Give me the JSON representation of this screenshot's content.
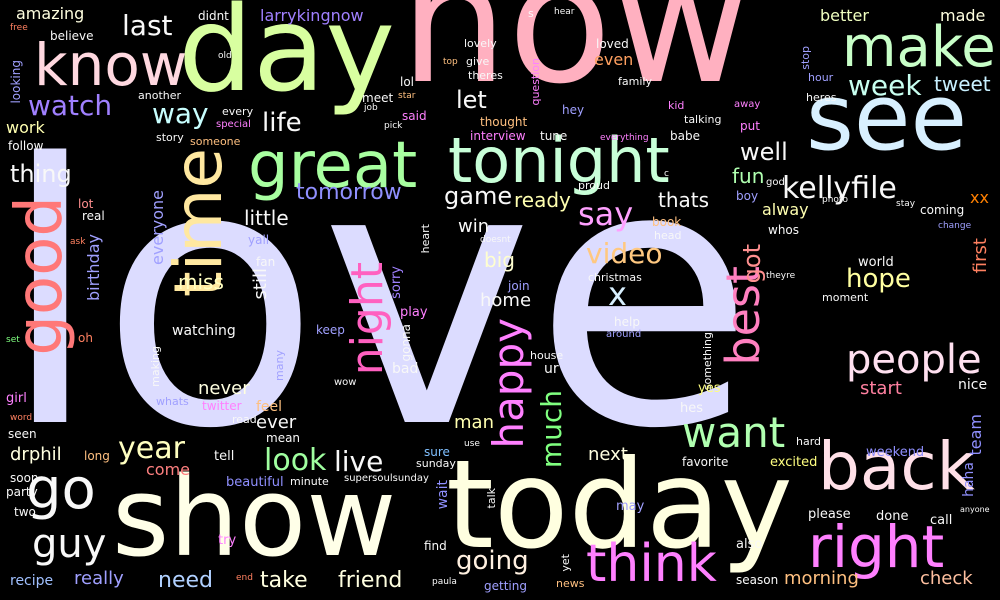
{
  "words": [
    {
      "text": "love",
      "color": "#dcdcff"
    },
    {
      "text": "now",
      "color": "#ffb0c0"
    },
    {
      "text": "day",
      "color": "#d8ffa0"
    },
    {
      "text": "show",
      "color": "#ffffe8"
    },
    {
      "text": "today",
      "color": "#ffffe0"
    },
    {
      "text": "see",
      "color": "#d8f0ff"
    },
    {
      "text": "tonight",
      "color": "#c8ffd8"
    },
    {
      "text": "great",
      "color": "#a8ffa0"
    },
    {
      "text": "time",
      "color": "#ffe8a0"
    },
    {
      "text": "good",
      "color": "#ff7878"
    },
    {
      "text": "make",
      "color": "#c8ffc8"
    },
    {
      "text": "know",
      "color": "#ffd8e0"
    },
    {
      "text": "back",
      "color": "#ffe0e8"
    },
    {
      "text": "right",
      "color": "#ff80ff"
    },
    {
      "text": "go",
      "color": "#f8f8f8"
    },
    {
      "text": "think",
      "color": "#ff80ff"
    },
    {
      "text": "happy",
      "color": "#ff80ff"
    },
    {
      "text": "night",
      "color": "#ff60c0"
    },
    {
      "text": "best",
      "color": "#ff80c0"
    },
    {
      "text": "want",
      "color": "#b0ffb0"
    },
    {
      "text": "people",
      "color": "#ffe0f0"
    },
    {
      "text": "guy",
      "color": "#f8f8f8"
    },
    {
      "text": "kellyfile",
      "color": "#f8f8f8"
    },
    {
      "text": "week",
      "color": "#c8fff0"
    },
    {
      "text": "watch",
      "color": "#a080ff"
    },
    {
      "text": "way",
      "color": "#c8ffff"
    },
    {
      "text": "life",
      "color": "#f8f8f8"
    },
    {
      "text": "last",
      "color": "#f8f8f8"
    },
    {
      "text": "say",
      "color": "#ffa0ff"
    },
    {
      "text": "video",
      "color": "#ffc880"
    },
    {
      "text": "x",
      "color": "#d8f0ff"
    },
    {
      "text": "going",
      "color": "#fff0e0"
    },
    {
      "text": "live",
      "color": "#f8f8f8"
    },
    {
      "text": "look",
      "color": "#a0ffa0"
    },
    {
      "text": "year",
      "color": "#ffffc0"
    },
    {
      "text": "much",
      "color": "#80ff80"
    },
    {
      "text": "hope",
      "color": "#ffffa0"
    },
    {
      "text": "game",
      "color": "#f8f8f8"
    },
    {
      "text": "tomorrow",
      "color": "#9090ff"
    },
    {
      "text": "thing",
      "color": "#f8f8f8"
    },
    {
      "text": "let",
      "color": "#f8f8f8"
    },
    {
      "text": "well",
      "color": "#f8f8f8"
    },
    {
      "text": "got",
      "color": "#ff9090"
    },
    {
      "text": "tweet",
      "color": "#c8f0ff"
    },
    {
      "text": "fun",
      "color": "#b0ffb0"
    },
    {
      "text": "thats",
      "color": "#f8f8f8"
    },
    {
      "text": "ready",
      "color": "#ffffb0"
    },
    {
      "text": "little",
      "color": "#f8f8f8"
    },
    {
      "text": "need",
      "color": "#b0d0ff"
    },
    {
      "text": "take",
      "color": "#ffffe0"
    },
    {
      "text": "friend",
      "color": "#ffffe0"
    },
    {
      "text": "really",
      "color": "#a0a0ff"
    },
    {
      "text": "morning",
      "color": "#ffc080"
    },
    {
      "text": "check",
      "color": "#ffc0a0"
    },
    {
      "text": "start",
      "color": "#ff80a0"
    },
    {
      "text": "first",
      "color": "#ff8060"
    },
    {
      "text": "miss",
      "color": "#ffffc0"
    },
    {
      "text": "still",
      "color": "#f8f8f8"
    },
    {
      "text": "big",
      "color": "#ffffd0"
    },
    {
      "text": "win",
      "color": "#f8f8f8"
    },
    {
      "text": "home",
      "color": "#f8f8f8"
    },
    {
      "text": "never",
      "color": "#ffffe0"
    },
    {
      "text": "ever",
      "color": "#f8f8f8"
    },
    {
      "text": "man",
      "color": "#ffffb0"
    },
    {
      "text": "come",
      "color": "#ff8080"
    },
    {
      "text": "drphil",
      "color": "#ffffe0"
    },
    {
      "text": "next",
      "color": "#ffffe0"
    },
    {
      "text": "everyone",
      "color": "#a0a0ff"
    },
    {
      "text": "birthday",
      "color": "#a0a0ff"
    },
    {
      "text": "better",
      "color": "#f0ffc0"
    },
    {
      "text": "made",
      "color": "#ffffe0"
    },
    {
      "text": "alway",
      "color": "#ffffb0"
    },
    {
      "text": "amazing",
      "color": "#ffffe0"
    },
    {
      "text": "larrykingnow",
      "color": "#a080ff"
    },
    {
      "text": "work",
      "color": "#ffffb0"
    },
    {
      "text": "even",
      "color": "#ffa060"
    },
    {
      "text": "world",
      "color": "#f8f8f8"
    },
    {
      "text": "watching",
      "color": "#f8f8f8"
    },
    {
      "text": "nice",
      "color": "#f8f8f8"
    },
    {
      "text": "team",
      "color": "#9090ff"
    },
    {
      "text": "haha",
      "color": "#9090ff"
    },
    {
      "text": "weekend",
      "color": "#9090ff"
    },
    {
      "text": "xx",
      "color": "#ff8000"
    },
    {
      "text": "coming",
      "color": "#f8f8f8"
    },
    {
      "text": "excited",
      "color": "#ffff80"
    },
    {
      "text": "favorite",
      "color": "#f8f8f8"
    },
    {
      "text": "wait",
      "color": "#9090ff"
    },
    {
      "text": "play",
      "color": "#ff80ff"
    },
    {
      "text": "beautiful",
      "color": "#9090ff"
    },
    {
      "text": "girl",
      "color": "#ff80ff"
    },
    {
      "text": "sorry",
      "color": "#a080ff"
    },
    {
      "text": "gonna",
      "color": "#f8f8f8"
    },
    {
      "text": "twitter",
      "color": "#ff80ff"
    },
    {
      "text": "feel",
      "color": "#ffc080"
    },
    {
      "text": "tell",
      "color": "#f8f8f8"
    },
    {
      "text": "mean",
      "color": "#f8f8f8"
    },
    {
      "text": "bad",
      "color": "#f8f8f8"
    },
    {
      "text": "ur",
      "color": "#f8f8f8"
    },
    {
      "text": "sure",
      "color": "#80c0ff"
    },
    {
      "text": "find",
      "color": "#f8f8f8"
    },
    {
      "text": "may",
      "color": "#a0a0ff"
    },
    {
      "text": "also",
      "color": "#f8f8f8"
    },
    {
      "text": "call",
      "color": "#f8f8f8"
    },
    {
      "text": "please",
      "color": "#f8f8f8"
    },
    {
      "text": "done",
      "color": "#f8f8f8"
    },
    {
      "text": "season",
      "color": "#f8f8f8"
    },
    {
      "text": "try",
      "color": "#ff80ff"
    },
    {
      "text": "recipe",
      "color": "#a0c0ff"
    },
    {
      "text": "party",
      "color": "#f8f8f8"
    },
    {
      "text": "soon",
      "color": "#f8f8f8"
    },
    {
      "text": "two",
      "color": "#f8f8f8"
    },
    {
      "text": "long",
      "color": "#ffc080"
    },
    {
      "text": "seen",
      "color": "#f8f8f8"
    },
    {
      "text": "oh",
      "color": "#ff8060"
    },
    {
      "text": "lot",
      "color": "#ff9090"
    },
    {
      "text": "real",
      "color": "#f8f8f8"
    },
    {
      "text": "follow",
      "color": "#f8f8f8"
    },
    {
      "text": "didnt",
      "color": "#f8f8f8"
    },
    {
      "text": "believe",
      "color": "#f8f8f8"
    },
    {
      "text": "looking",
      "color": "#a0a0ff"
    },
    {
      "text": "lovely",
      "color": "#f8f8f8"
    },
    {
      "text": "loved",
      "color": "#f8f8f8"
    },
    {
      "text": "family",
      "color": "#f8f8f8"
    },
    {
      "text": "give",
      "color": "#f8f8f8"
    },
    {
      "text": "theres",
      "color": "#f8f8f8"
    },
    {
      "text": "question",
      "color": "#ff80ff"
    },
    {
      "text": "meet",
      "color": "#f8f8f8"
    },
    {
      "text": "lol",
      "color": "#f8f8f8"
    },
    {
      "text": "said",
      "color": "#ff80ff"
    },
    {
      "text": "thought",
      "color": "#ffc080"
    },
    {
      "text": "hey",
      "color": "#a0a0ff"
    },
    {
      "text": "another",
      "color": "#f8f8f8"
    },
    {
      "text": "every",
      "color": "#f8f8f8"
    },
    {
      "text": "story",
      "color": "#f8f8f8"
    },
    {
      "text": "someone",
      "color": "#ffc080"
    },
    {
      "text": "interview",
      "color": "#ff80ff"
    },
    {
      "text": "tune",
      "color": "#f8f8f8"
    },
    {
      "text": "kid",
      "color": "#ff80ff"
    },
    {
      "text": "talking",
      "color": "#f8f8f8"
    },
    {
      "text": "put",
      "color": "#ff80ff"
    },
    {
      "text": "babe",
      "color": "#f8f8f8"
    },
    {
      "text": "book",
      "color": "#ffc080"
    },
    {
      "text": "head",
      "color": "#f8f8f8"
    },
    {
      "text": "hour",
      "color": "#a0a0ff"
    },
    {
      "text": "heres",
      "color": "#f8f8f8"
    },
    {
      "text": "whos",
      "color": "#f8f8f8"
    },
    {
      "text": "boy",
      "color": "#a0a0ff"
    },
    {
      "text": "yall",
      "color": "#a0a0ff"
    },
    {
      "text": "fan",
      "color": "#f8f8f8"
    },
    {
      "text": "keep",
      "color": "#a0a0ff"
    },
    {
      "text": "making",
      "color": "#f8f8f8"
    },
    {
      "text": "many",
      "color": "#a0a0ff"
    },
    {
      "text": "wow",
      "color": "#f8f8f8"
    },
    {
      "text": "whats",
      "color": "#a0a0ff"
    },
    {
      "text": "read",
      "color": "#f8f8f8"
    },
    {
      "text": "minute",
      "color": "#f8f8f8"
    },
    {
      "text": "sunday",
      "color": "#f8f8f8"
    },
    {
      "text": "talk",
      "color": "#f8f8f8"
    },
    {
      "text": "getting",
      "color": "#a0a0ff"
    },
    {
      "text": "news",
      "color": "#ffc080"
    },
    {
      "text": "yet",
      "color": "#f8f8f8"
    },
    {
      "text": "house",
      "color": "#f8f8f8"
    },
    {
      "text": "join",
      "color": "#a0a0ff"
    },
    {
      "text": "help",
      "color": "#f8f8f8"
    },
    {
      "text": "christmas",
      "color": "#f8f8f8"
    },
    {
      "text": "moment",
      "color": "#f8f8f8"
    },
    {
      "text": "something",
      "color": "#f8f8f8"
    },
    {
      "text": "yes",
      "color": "#ffff80"
    },
    {
      "text": "hes",
      "color": "#f8f8f8"
    },
    {
      "text": "hard",
      "color": "#f8f8f8"
    },
    {
      "text": "supersoulsunday",
      "color": "#f8f8f8"
    },
    {
      "text": "end",
      "color": "#ff8060"
    },
    {
      "text": "paula",
      "color": "#f8f8f8"
    },
    {
      "text": "stop",
      "color": "#a0a0ff"
    },
    {
      "text": "god",
      "color": "#f8f8f8"
    },
    {
      "text": "proud",
      "color": "#f8f8f8"
    },
    {
      "text": "everything",
      "color": "#ff80ff"
    },
    {
      "text": "around",
      "color": "#a0a0ff"
    },
    {
      "text": "theyre",
      "color": "#f8f8f8"
    },
    {
      "text": "photo",
      "color": "#f8f8f8"
    },
    {
      "text": "stay",
      "color": "#f8f8f8"
    },
    {
      "text": "change",
      "color": "#a0a0ff"
    },
    {
      "text": "anyone",
      "color": "#f8f8f8"
    },
    {
      "text": "word",
      "color": "#ff8060"
    },
    {
      "text": "heart",
      "color": "#f8f8f8"
    },
    {
      "text": "doesnt",
      "color": "#f8f8f8"
    },
    {
      "text": "use",
      "color": "#f8f8f8"
    },
    {
      "text": "special",
      "color": "#ff80ff"
    },
    {
      "text": "job",
      "color": "#f8f8f8"
    },
    {
      "text": "star",
      "color": "#ffc080"
    },
    {
      "text": "pick",
      "color": "#f8f8f8"
    },
    {
      "text": "top",
      "color": "#ffc080"
    },
    {
      "text": "away",
      "color": "#ff80ff"
    },
    {
      "text": "hear",
      "color": "#f8f8f8"
    },
    {
      "text": "s",
      "color": "#f8f8f8"
    },
    {
      "text": "free",
      "color": "#ff8060"
    },
    {
      "text": "old",
      "color": "#f8f8f8"
    },
    {
      "text": "ask",
      "color": "#ff8060"
    },
    {
      "text": "set",
      "color": "#80ff80"
    },
    {
      "text": "c",
      "color": "#f8f8f8"
    }
  ]
}
